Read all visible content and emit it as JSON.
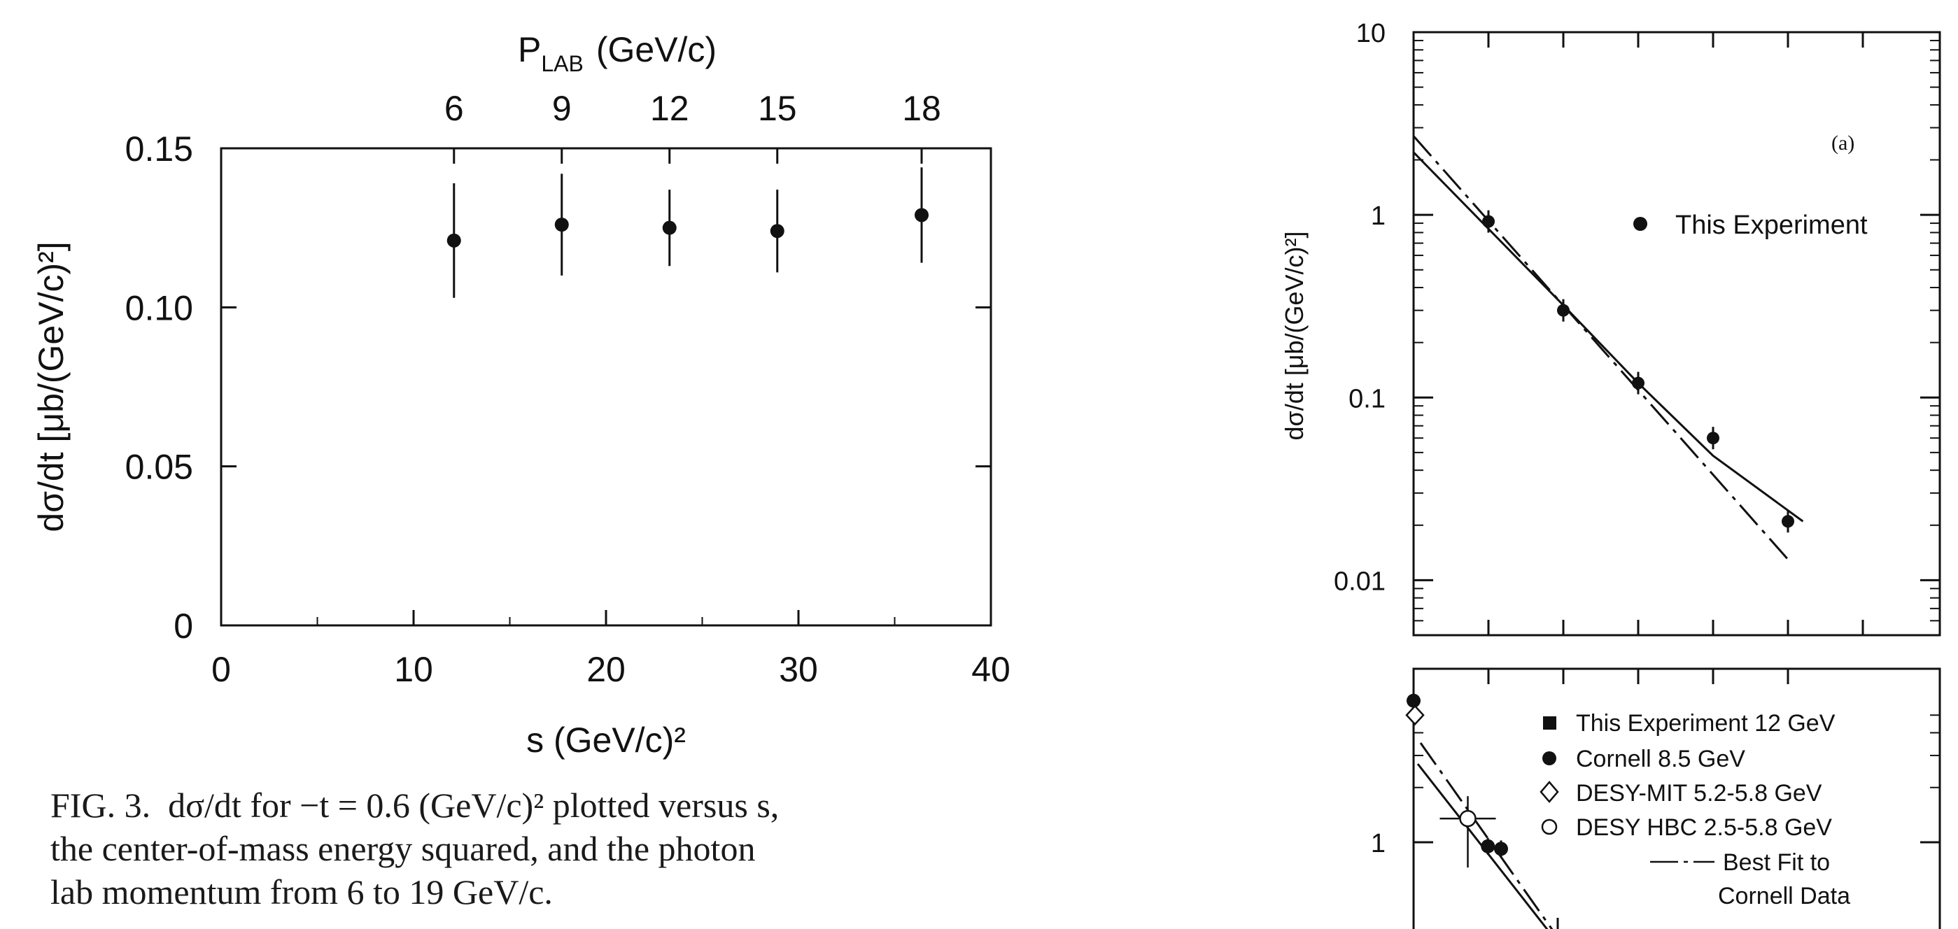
{
  "chart_data": [
    {
      "type": "scatter",
      "title": "",
      "xlabel": "s (GeV/c)²",
      "ylabel": "dσ/dt [μb/(GeV/c)²]",
      "xlim": [
        0,
        40
      ],
      "ylim": [
        0,
        0.15
      ],
      "x_ticks": [
        "0",
        "10",
        "20",
        "30",
        "40"
      ],
      "y_ticks": [
        "0",
        "0.05",
        "0.10",
        "0.15"
      ],
      "top_axis": {
        "label_main": "P",
        "label_sub": "LAB",
        "label_unit": "(GeV/c)",
        "ticks": [
          "6",
          "9",
          "12",
          "15",
          "18"
        ]
      },
      "series": [
        {
          "points": [
            {
              "x": 12.1,
              "y": 0.121,
              "err": 0.018
            },
            {
              "x": 17.7,
              "y": 0.126,
              "err": 0.016
            },
            {
              "x": 23.3,
              "y": 0.125,
              "err": 0.012
            },
            {
              "x": 28.9,
              "y": 0.124,
              "err": 0.013
            },
            {
              "x": 36.4,
              "y": 0.129,
              "err": 0.015
            }
          ]
        }
      ],
      "grid": false
    },
    {
      "type": "scatter",
      "panel_label": "(a)",
      "ylabel": "dσ/dt [μb/(GeV/c)²]",
      "yscale": "log",
      "ylim": [
        0.005,
        10
      ],
      "y_ticks": [
        "10",
        "1",
        "0.1",
        "0.01"
      ],
      "legend": [
        "This Experiment"
      ],
      "series": [
        {
          "name": "This Experiment",
          "points": [
            {
              "x": 1,
              "y": 0.92
            },
            {
              "x": 2,
              "y": 0.3
            },
            {
              "x": 3,
              "y": 0.12
            },
            {
              "x": 4,
              "y": 0.06
            },
            {
              "x": 5,
              "y": 0.021
            }
          ]
        }
      ],
      "fit_curves": [
        {
          "style": "solid",
          "points": [
            {
              "x": 0,
              "y": 2.2
            },
            {
              "x": 2,
              "y": 0.32
            },
            {
              "x": 3,
              "y": 0.12
            },
            {
              "x": 4,
              "y": 0.048
            },
            {
              "x": 5.2,
              "y": 0.021
            }
          ]
        },
        {
          "style": "dashdot",
          "points": [
            {
              "x": 0,
              "y": 2.7
            },
            {
              "x": 5,
              "y": 0.013
            }
          ]
        }
      ]
    },
    {
      "type": "scatter",
      "panel_label": "",
      "ylabel": "",
      "yscale": "log",
      "y_ticks": [
        "1"
      ],
      "legend": [
        "This Experiment 12 GeV",
        "Cornell 8.5 GeV",
        "DESY-MIT 5.2-5.8 GeV",
        "DESY HBC 2.5-5.8 GeV",
        "Best Fit to",
        "Cornell Data"
      ],
      "series": [
        {
          "name": "Cornell 8.5 GeV",
          "marker": "filled-circle",
          "points": [
            {
              "x": 0,
              "y": 6.0
            },
            {
              "x": 0.85,
              "y": 0.95
            },
            {
              "x": 1.0,
              "y": 0.92
            }
          ]
        },
        {
          "name": "DESY-MIT 5.2-5.8 GeV",
          "marker": "open-diamond",
          "points": [
            {
              "x": 0,
              "y": 5.0
            }
          ]
        },
        {
          "name": "DESY HBC 2.5-5.8 GeV",
          "marker": "open-circle",
          "points": [
            {
              "x": 0.5,
              "y": 1.35
            }
          ]
        }
      ]
    }
  ],
  "caption": {
    "prefix": "FIG. 3.",
    "line1": "dσ/dt for −t = 0.6 (GeV/c)² plotted versus s,",
    "line2": "the center-of-mass energy squared, and the photon",
    "line3": "lab momentum from 6 to 19 GeV/c."
  }
}
